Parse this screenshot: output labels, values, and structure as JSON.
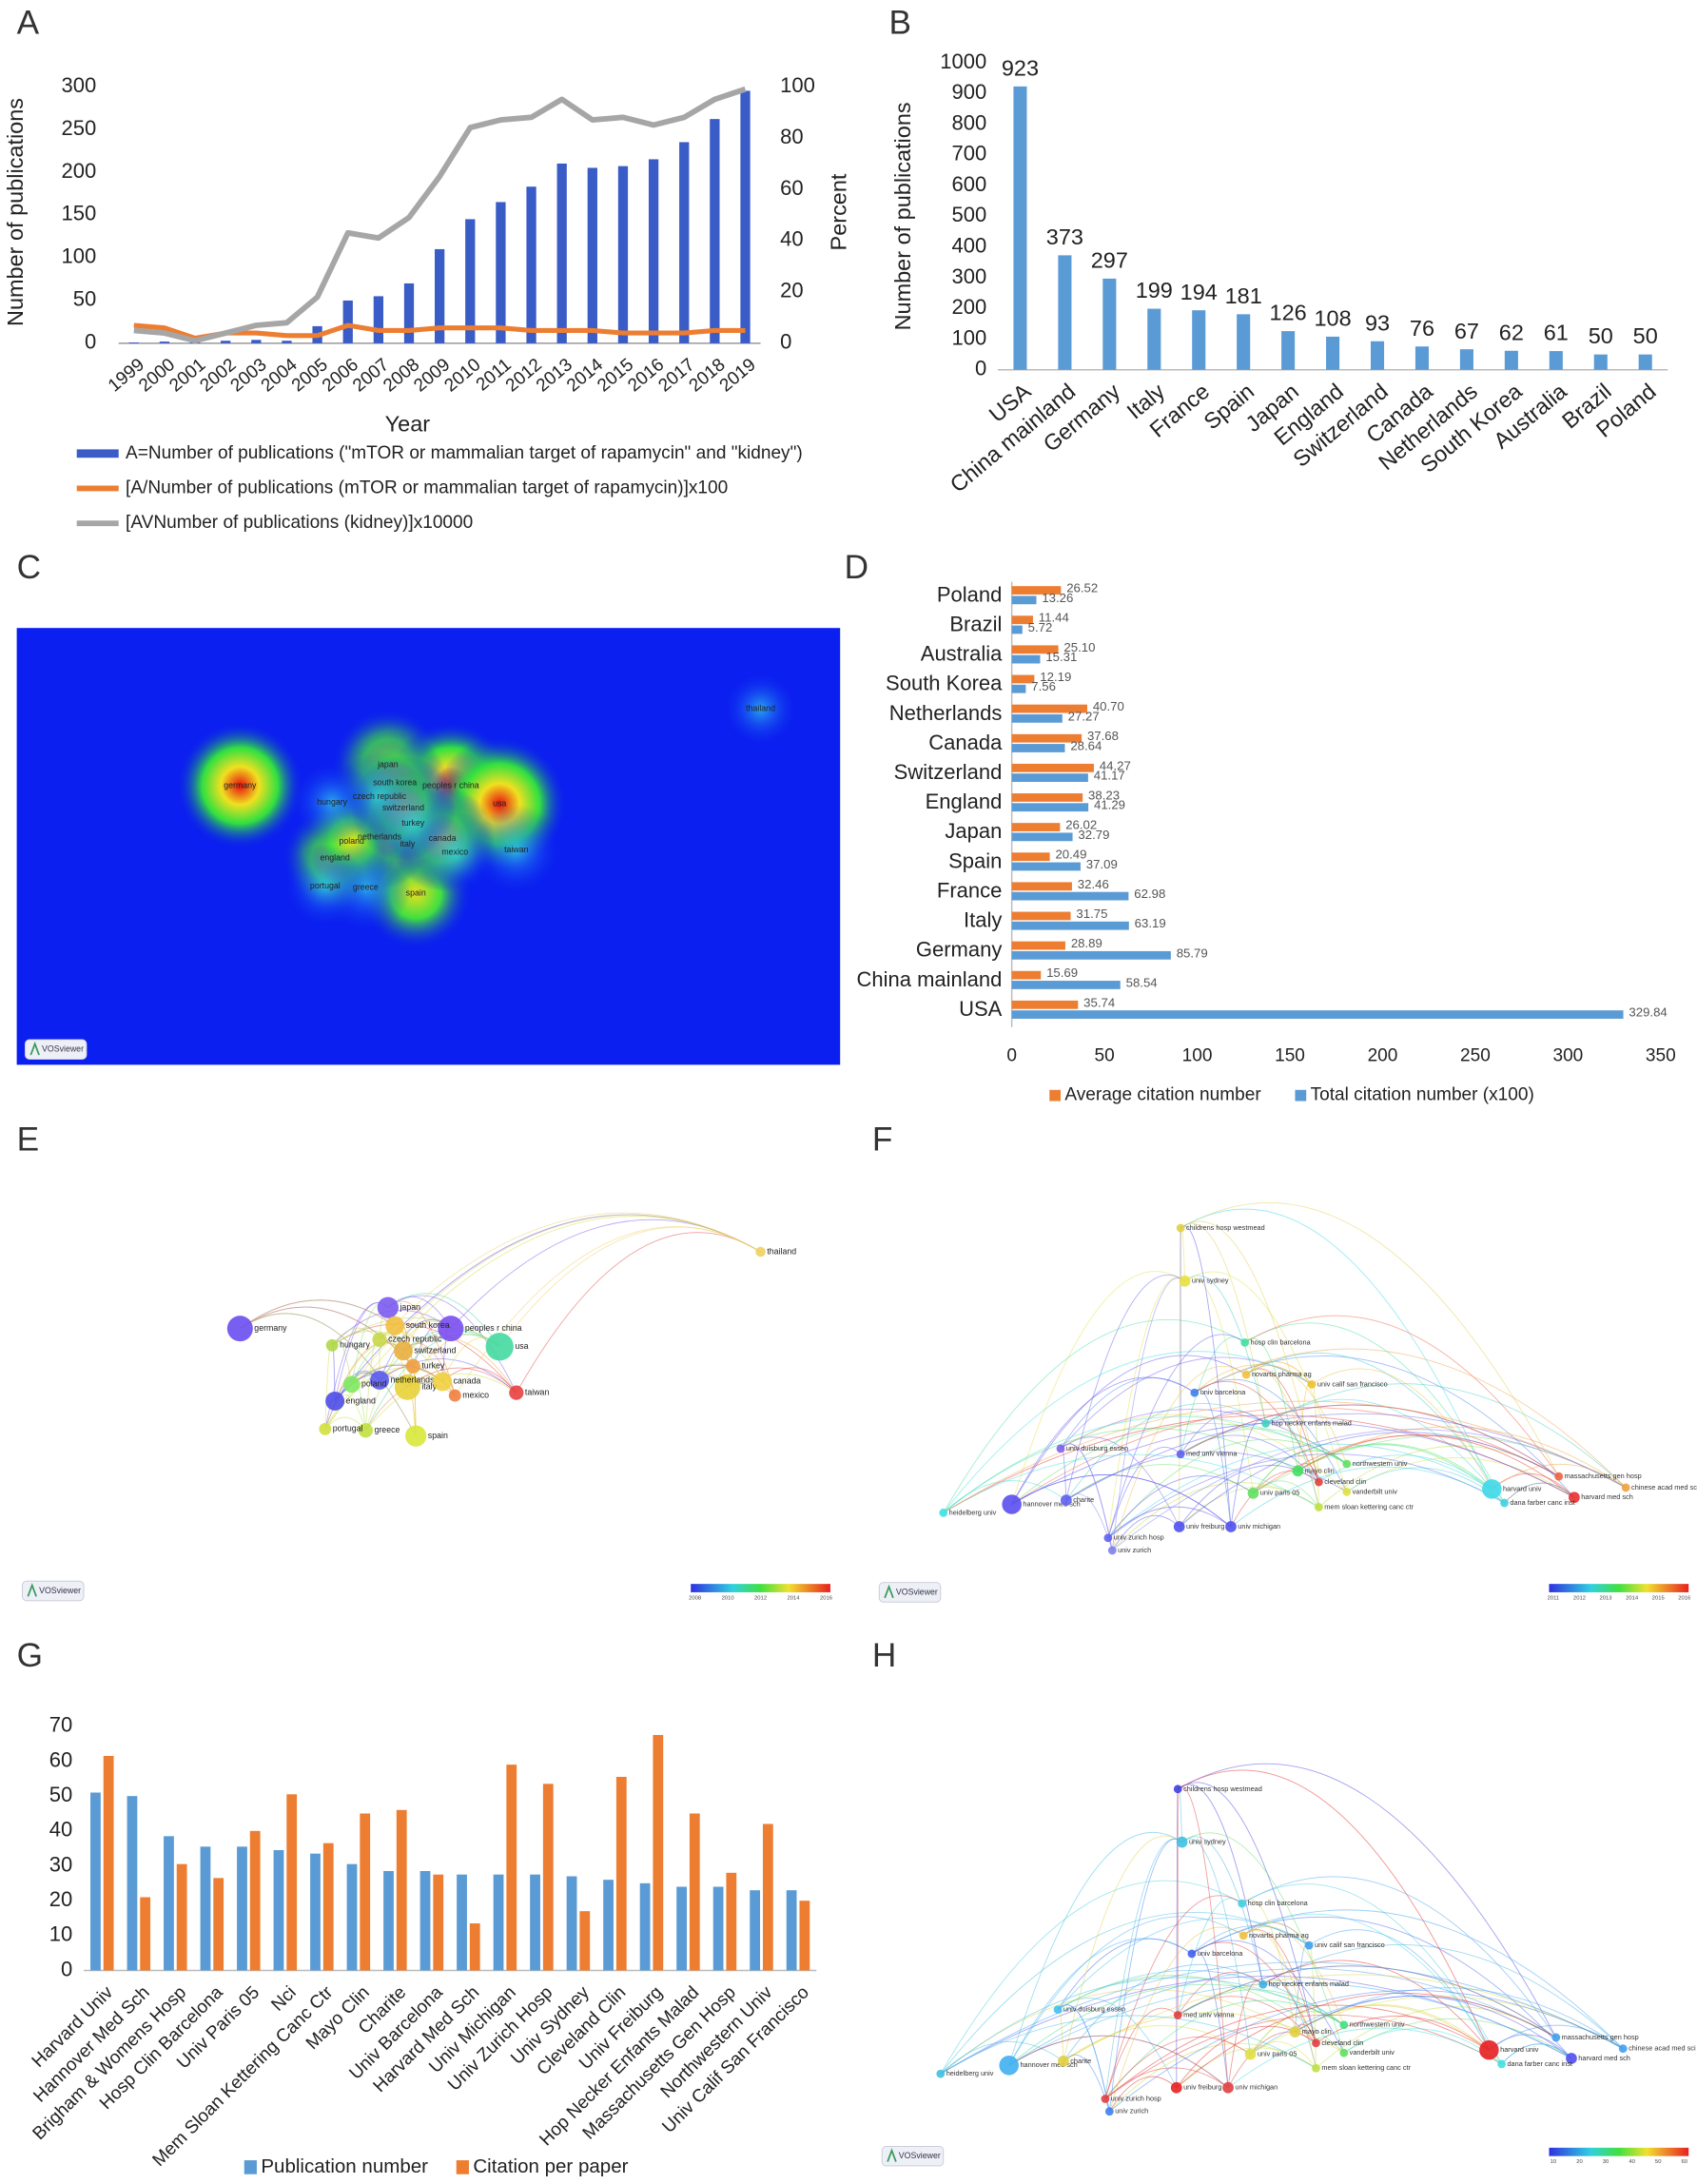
{
  "chart_data": [
    {
      "panel": "A",
      "type": "combo",
      "ylabel": "Number of publications",
      "y2label": "Percent",
      "xlabel": "Year",
      "categories": [
        "1999",
        "2000",
        "2001",
        "2002",
        "2003",
        "2004",
        "2005",
        "2006",
        "2007",
        "2008",
        "2009",
        "2010",
        "2011",
        "2012",
        "2013",
        "2014",
        "2015",
        "2016",
        "2017",
        "2018",
        "2019"
      ],
      "series": [
        {
          "name": "A=Number of publications (\"mTOR or mammalian target of rapamycin\" and \"kidney\")",
          "type": "bar",
          "axis": "y",
          "color": "#3a5cc7",
          "values": [
            1,
            2,
            1,
            3,
            4,
            3,
            20,
            50,
            55,
            70,
            110,
            145,
            165,
            183,
            210,
            205,
            207,
            215,
            235,
            262,
            295
          ]
        },
        {
          "name": "[A/Number of publications (mTOR or mammalian target of rapamycin)]x100",
          "type": "line",
          "axis": "y2",
          "color": "#ed7d31",
          "values": [
            7,
            6,
            2,
            4,
            4,
            3,
            3,
            7,
            5,
            5,
            6,
            6,
            6,
            5,
            5,
            5,
            4,
            4,
            4,
            5,
            5
          ]
        },
        {
          "name": "[AVNumber of publications (kidney)]x10000",
          "type": "line",
          "axis": "y2",
          "color": "#a6a6a6",
          "values": [
            5,
            4,
            1,
            4,
            7,
            8,
            18,
            43,
            41,
            49,
            65,
            84,
            87,
            88,
            95,
            87,
            88,
            85,
            88,
            95,
            99
          ]
        }
      ],
      "ylim": [
        0,
        300
      ],
      "yticks": [
        0,
        50,
        100,
        150,
        200,
        250,
        300
      ],
      "y2lim": [
        0,
        100
      ],
      "y2ticks": [
        0,
        20,
        40,
        60,
        80,
        100
      ]
    },
    {
      "panel": "B",
      "type": "bar",
      "ylabel": "Number of publications",
      "color": "#5b9bd5",
      "data_labels": true,
      "categories": [
        "USA",
        "China mainland",
        "Germany",
        "Italy",
        "France",
        "Spain",
        "Japan",
        "England",
        "Switzerland",
        "Canada",
        "Netherlands",
        "South Korea",
        "Australia",
        "Brazil",
        "Poland"
      ],
      "values": [
        923,
        373,
        297,
        199,
        194,
        181,
        126,
        108,
        93,
        76,
        67,
        62,
        61,
        50,
        50
      ],
      "ylim": [
        0,
        1000
      ],
      "yticks": [
        0,
        100,
        200,
        300,
        400,
        500,
        600,
        700,
        800,
        900,
        1000
      ]
    },
    {
      "panel": "D",
      "type": "hbar",
      "categories": [
        "USA",
        "China mainland",
        "Germany",
        "Italy",
        "France",
        "Spain",
        "Japan",
        "England",
        "Switzerland",
        "Canada",
        "Netherlands",
        "South Korea",
        "Australia",
        "Brazil",
        "Poland"
      ],
      "series": [
        {
          "name": "Average citation number",
          "color": "#ed7d31",
          "values": [
            35.74,
            15.69,
            28.89,
            31.75,
            32.46,
            20.49,
            26.02,
            38.23,
            44.27,
            37.68,
            40.7,
            12.19,
            25.1,
            11.44,
            26.52
          ],
          "value_labels": [
            "35.74",
            "15.69",
            "28.89",
            "31.75",
            "32.46",
            "20.49",
            "26.02",
            "38.23",
            "44.27",
            "37.68",
            "40.70",
            "12.19",
            "25.10",
            "11.44",
            "26.52"
          ]
        },
        {
          "name": "Total citation number (x100)",
          "color": "#5b9bd5",
          "values": [
            329.84,
            58.54,
            85.79,
            63.19,
            62.98,
            37.09,
            32.79,
            41.29,
            41.17,
            28.64,
            27.27,
            7.56,
            15.31,
            5.72,
            13.26
          ],
          "value_labels": [
            "329.84",
            "58.54",
            "85.79",
            "63.19",
            "62.98",
            "37.09",
            "32.79",
            "41.29",
            "41.17",
            "28.64",
            "27.27",
            "7.56",
            "15.31",
            "5.72",
            "13.26"
          ]
        }
      ],
      "xlim": [
        0,
        350
      ],
      "xticks": [
        0,
        50,
        100,
        150,
        200,
        250,
        300,
        350
      ]
    },
    {
      "panel": "G",
      "type": "bar",
      "categories": [
        "Harvard Univ",
        "Hannover Med Sch",
        "Brigham & Womens Hosp",
        "Hosp Clin Barcelona",
        "Univ Paris 05",
        "Nci",
        "Mem Sloan Kettering Canc Ctr",
        "Mayo Clin",
        "Charite",
        "Univ Barcelona",
        "Harvard Med Sch",
        "Univ Michigan",
        "Univ Zurich Hosp",
        "Univ Sydney",
        "Cleveland Clin",
        "Univ Freiburg",
        "Hop Necker Enfants Malad",
        "Massachusetts Gen Hosp",
        "Northwestern Univ",
        "Univ Calif San Francisco"
      ],
      "series": [
        {
          "name": "Publication number",
          "color": "#5b9bd5",
          "values": [
            51,
            50,
            38.5,
            35.5,
            35.5,
            34.5,
            33.5,
            30.5,
            28.5,
            28.5,
            27.5,
            27.5,
            27.5,
            27,
            26,
            25,
            24,
            24,
            23,
            23
          ]
        },
        {
          "name": "Citation per paper",
          "color": "#ed7d31",
          "values": [
            61.5,
            21,
            30.5,
            26.5,
            40,
            50.5,
            36.5,
            45,
            46,
            27.5,
            13.5,
            59,
            53.5,
            17,
            55.5,
            67.5,
            45,
            28,
            42,
            20
          ]
        }
      ],
      "ylim": [
        0,
        70
      ],
      "yticks": [
        0,
        10,
        20,
        30,
        40,
        50,
        60,
        70
      ]
    }
  ],
  "maps": [
    {
      "panel": "C",
      "type": "density",
      "badge": "VOSviewer",
      "nodes": [
        "germany",
        "japan",
        "peoples r china",
        "usa",
        "italy",
        "spain",
        "netherlands",
        "england",
        "poland",
        "canada",
        "south korea",
        "switzerland",
        "taiwan",
        "czech republic",
        "hungary",
        "turkey",
        "greece",
        "portugal",
        "mexico",
        "thailand"
      ]
    },
    {
      "panel": "E",
      "type": "network",
      "badge": "VOSviewer",
      "nodes": [
        "germany",
        "japan",
        "peoples r china",
        "usa",
        "italy",
        "spain",
        "netherlands",
        "england",
        "poland",
        "canada",
        "south korea",
        "switzerland",
        "taiwan",
        "czech republic",
        "hungary",
        "turkey",
        "greece",
        "portugal",
        "mexico",
        "thailand"
      ],
      "scale": [
        2008,
        2010,
        2012,
        2014,
        2016
      ]
    },
    {
      "panel": "F",
      "type": "network",
      "badge": "VOSviewer",
      "nodes": [
        "childrens hosp westmead",
        "univ sydney",
        "hosp clin barcelona",
        "univ calif san francisco",
        "univ barcelona",
        "hop necker enfants malad",
        "univ duisburg essen",
        "med univ vienna",
        "northwestern univ",
        "mayo clin",
        "cleveland clin",
        "vanderbilt univ",
        "univ paris 05",
        "mem sloan kettering canc ctr",
        "harvard univ",
        "massachusetts gen hosp",
        "harvard med sch",
        "hannover med sch",
        "charite",
        "heidelberg univ",
        "univ freiburg",
        "univ michigan",
        "univ zurich hosp",
        "chinese acad med sci",
        "dana farber canc inst",
        "univ zurich",
        "novartis pharma ag"
      ],
      "scale": [
        2011,
        2012,
        2013,
        2014,
        2015,
        2016
      ]
    },
    {
      "panel": "H",
      "type": "network",
      "badge": "VOSviewer",
      "nodes": [
        "childrens hosp westmead",
        "univ sydney",
        "hosp clin barcelona",
        "univ calif san francisco",
        "univ barcelona",
        "hop necker enfants malad",
        "univ duisburg essen",
        "med univ vienna",
        "northwestern univ",
        "mayo clin",
        "cleveland clin",
        "vanderbilt univ",
        "univ paris 05",
        "mem sloan kettering canc ctr",
        "harvard univ",
        "massachusetts gen hosp",
        "harvard med sch",
        "hannover med sch",
        "charite",
        "heidelberg univ",
        "univ freiburg",
        "univ michigan",
        "univ zurich hosp",
        "chinese acad med sci",
        "dana farber canc inst",
        "univ zurich",
        "novartis pharma ag"
      ],
      "scale": [
        10,
        20,
        30,
        40,
        50,
        60
      ]
    }
  ]
}
